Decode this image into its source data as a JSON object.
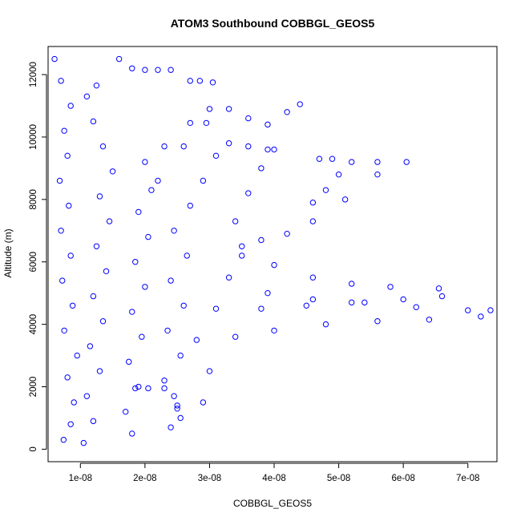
{
  "chart_data": {
    "type": "scatter",
    "title": "ATOM3 Southbound COBBGL_GEOS5",
    "xlabel": "COBBGL_GEOS5",
    "ylabel": "Altitude (m)",
    "xlim": [
      5e-09,
      7.45e-08
    ],
    "ylim": [
      -400,
      12900
    ],
    "x_ticks": [
      1e-08,
      2e-08,
      3e-08,
      4e-08,
      5e-08,
      6e-08,
      7e-08
    ],
    "x_tick_labels": [
      "1e-08",
      "2e-08",
      "3e-08",
      "4e-08",
      "5e-08",
      "6e-08",
      "7e-08"
    ],
    "y_ticks": [
      0,
      2000,
      4000,
      6000,
      8000,
      10000,
      12000
    ],
    "y_tick_labels": [
      "0",
      "2000",
      "4000",
      "6000",
      "8000",
      "10000",
      "12000"
    ],
    "marker": "open-circle",
    "color": "#0000ff",
    "grid": false,
    "legend": "none",
    "series": [
      {
        "points": [
          [
            7.4e-09,
            300
          ],
          [
            8.5e-09,
            800
          ],
          [
            9e-09,
            1500
          ],
          [
            8e-09,
            2300
          ],
          [
            9.5e-09,
            3000
          ],
          [
            7.5e-09,
            3800
          ],
          [
            8.8e-09,
            4600
          ],
          [
            7.2e-09,
            5400
          ],
          [
            8.5e-09,
            6200
          ],
          [
            7e-09,
            7000
          ],
          [
            8.2e-09,
            7800
          ],
          [
            6.8e-09,
            8600
          ],
          [
            8e-09,
            9400
          ],
          [
            7.5e-09,
            10200
          ],
          [
            8.5e-09,
            11000
          ],
          [
            7e-09,
            11800
          ],
          [
            6e-09,
            12500
          ]
        ]
      },
      {
        "points": [
          [
            1.05e-08,
            200
          ],
          [
            1.2e-08,
            900
          ],
          [
            1.1e-08,
            1700
          ],
          [
            1.3e-08,
            2500
          ],
          [
            1.15e-08,
            3300
          ],
          [
            1.35e-08,
            4100
          ],
          [
            1.2e-08,
            4900
          ],
          [
            1.4e-08,
            5700
          ],
          [
            1.25e-08,
            6500
          ],
          [
            1.45e-08,
            7300
          ],
          [
            1.3e-08,
            8100
          ],
          [
            1.5e-08,
            8900
          ],
          [
            1.35e-08,
            9700
          ],
          [
            1.2e-08,
            10500
          ],
          [
            1.1e-08,
            11300
          ],
          [
            1.25e-08,
            11650
          ]
        ]
      },
      {
        "points": [
          [
            1.8e-08,
            500
          ],
          [
            1.7e-08,
            1200
          ],
          [
            1.9e-08,
            2000
          ],
          [
            1.75e-08,
            2800
          ],
          [
            1.95e-08,
            3600
          ],
          [
            1.8e-08,
            4400
          ],
          [
            2e-08,
            5200
          ],
          [
            1.85e-08,
            6000
          ],
          [
            2.05e-08,
            6800
          ],
          [
            1.9e-08,
            7600
          ],
          [
            2.1e-08,
            8300
          ],
          [
            2.2e-08,
            8600
          ],
          [
            2e-08,
            9200
          ],
          [
            2.3e-08,
            9700
          ],
          [
            2.6e-08,
            9700
          ]
        ]
      },
      {
        "points": [
          [
            2.4e-08,
            700
          ],
          [
            2.5e-08,
            1400
          ],
          [
            2.3e-08,
            2200
          ],
          [
            2.55e-08,
            3000
          ],
          [
            2.35e-08,
            3800
          ],
          [
            2.6e-08,
            4600
          ],
          [
            2.4e-08,
            5400
          ],
          [
            2.65e-08,
            6200
          ],
          [
            2.45e-08,
            7000
          ],
          [
            2.7e-08,
            7800
          ],
          [
            2.9e-08,
            8600
          ],
          [
            3.1e-08,
            9400
          ],
          [
            3.3e-08,
            9800
          ],
          [
            3.6e-08,
            9700
          ],
          [
            3.9e-08,
            9600
          ]
        ]
      },
      {
        "points": [
          [
            2.9e-08,
            1500
          ],
          [
            3e-08,
            2500
          ],
          [
            2.8e-08,
            3500
          ],
          [
            3.1e-08,
            4500
          ],
          [
            3.3e-08,
            5500
          ],
          [
            3.5e-08,
            6500
          ],
          [
            3.4e-08,
            7300
          ],
          [
            3.6e-08,
            8200
          ],
          [
            3.8e-08,
            9000
          ],
          [
            4e-08,
            9600
          ]
        ]
      },
      {
        "points": [
          [
            1.6e-08,
            12500
          ],
          [
            1.8e-08,
            12200
          ],
          [
            2e-08,
            12150
          ],
          [
            2.2e-08,
            12150
          ],
          [
            2.4e-08,
            12150
          ]
        ]
      },
      {
        "points": [
          [
            2.7e-08,
            11800
          ],
          [
            2.85e-08,
            11800
          ],
          [
            3.05e-08,
            11750
          ]
        ]
      },
      {
        "points": [
          [
            3e-08,
            10900
          ],
          [
            3.3e-08,
            10900
          ],
          [
            3.6e-08,
            10600
          ],
          [
            3.9e-08,
            10400
          ],
          [
            4.2e-08,
            10800
          ],
          [
            4.4e-08,
            11050
          ]
        ]
      },
      {
        "points": [
          [
            2.7e-08,
            10450
          ],
          [
            2.95e-08,
            10450
          ]
        ]
      },
      {
        "points": [
          [
            4.7e-08,
            9300
          ],
          [
            4.9e-08,
            9300
          ],
          [
            5e-08,
            8800
          ],
          [
            4.8e-08,
            8300
          ],
          [
            4.6e-08,
            7900
          ]
        ]
      },
      {
        "points": [
          [
            5.2e-08,
            9200
          ],
          [
            5.6e-08,
            9200
          ],
          [
            6.05e-08,
            9200
          ],
          [
            5.6e-08,
            8800
          ],
          [
            5.1e-08,
            8000
          ],
          [
            4.6e-08,
            7300
          ],
          [
            4.2e-08,
            6900
          ],
          [
            3.8e-08,
            6700
          ]
        ]
      },
      {
        "points": [
          [
            3.5e-08,
            6200
          ],
          [
            4e-08,
            5900
          ],
          [
            4.6e-08,
            5500
          ],
          [
            5.2e-08,
            5300
          ],
          [
            5.8e-08,
            5200
          ],
          [
            6.55e-08,
            5150
          ],
          [
            6.6e-08,
            4900
          ],
          [
            6e-08,
            4800
          ],
          [
            5.2e-08,
            4700
          ],
          [
            4.5e-08,
            4600
          ],
          [
            3.8e-08,
            4500
          ]
        ]
      },
      {
        "points": [
          [
            3.9e-08,
            5000
          ],
          [
            4.6e-08,
            4800
          ],
          [
            5.4e-08,
            4700
          ],
          [
            6.2e-08,
            4550
          ],
          [
            7e-08,
            4450
          ],
          [
            7.35e-08,
            4450
          ],
          [
            7.2e-08,
            4250
          ],
          [
            6.4e-08,
            4150
          ],
          [
            5.6e-08,
            4100
          ],
          [
            4.8e-08,
            4000
          ],
          [
            4e-08,
            3800
          ],
          [
            3.4e-08,
            3600
          ]
        ]
      },
      {
        "points": [
          [
            1.85e-08,
            1950
          ],
          [
            2.05e-08,
            1950
          ],
          [
            2.3e-08,
            1950
          ],
          [
            2.45e-08,
            1700
          ],
          [
            2.5e-08,
            1300
          ],
          [
            2.55e-08,
            1000
          ]
        ]
      }
    ]
  }
}
